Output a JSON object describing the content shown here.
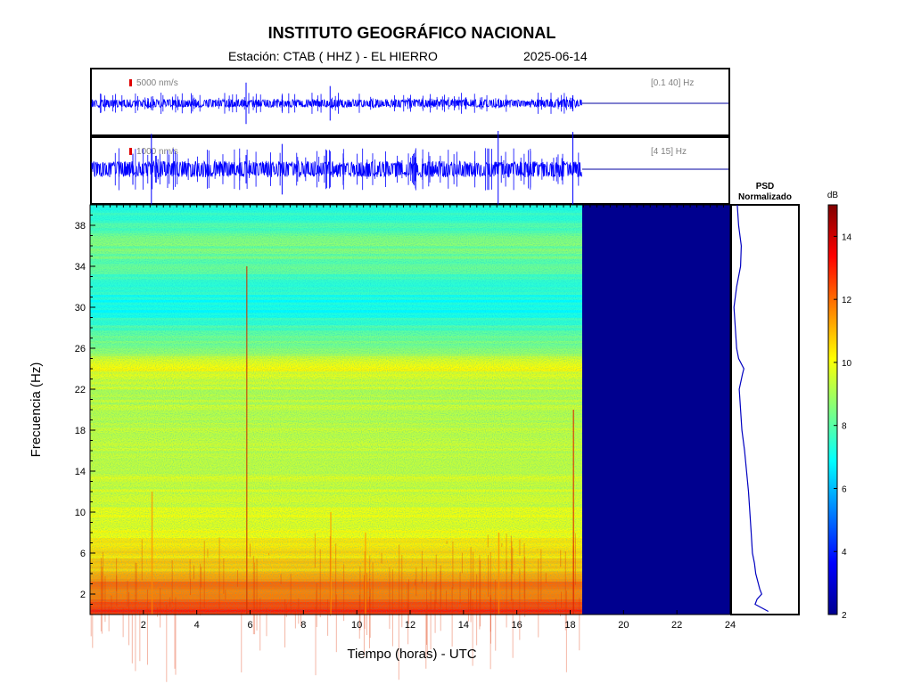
{
  "header": {
    "title": "INSTITUTO GEOGRÁFICO NACIONAL",
    "station": "Estación:  CTAB ( HHZ ) - EL HIERRO",
    "date": "2025-06-14"
  },
  "traces": [
    {
      "scale_label": "5000 nm/s",
      "band_label": "[0.1 40] Hz"
    },
    {
      "scale_label": "1000 nm/s",
      "band_label": "[4 15] Hz"
    }
  ],
  "psd": {
    "title_line1": "PSD",
    "title_line2": "Normalizado"
  },
  "colorbar": {
    "unit": "dB",
    "ticks": [
      2,
      4,
      6,
      8,
      10,
      12,
      14
    ],
    "range": [
      2,
      15
    ]
  },
  "colors": {
    "trace": "#0000ff",
    "no_data": "#00008f",
    "frame": "#000000"
  },
  "chart_data": {
    "type": "heatmap",
    "title": "INSTITUTO GEOGRÁFICO NACIONAL",
    "xlabel": "Tiempo (horas) - UTC",
    "ylabel": "Frecuencia  (Hz)",
    "xlim": [
      0,
      24
    ],
    "ylim": [
      0,
      40
    ],
    "xticks": [
      2,
      4,
      6,
      8,
      10,
      12,
      14,
      16,
      18,
      20,
      22,
      24
    ],
    "yticks": [
      2,
      6,
      10,
      14,
      18,
      22,
      26,
      30,
      34,
      38
    ],
    "data_end_hour": 18.45,
    "colorscale": "jet",
    "psd_curve": {
      "frequency_hz": [
        0.3,
        1,
        1.5,
        2,
        2.5,
        3,
        4,
        5,
        6,
        8,
        10,
        12,
        14,
        16,
        18,
        20,
        22,
        23.5,
        24,
        25,
        26,
        28,
        30,
        32,
        34,
        36,
        38,
        40
      ],
      "normalized": [
        0.55,
        0.35,
        0.38,
        0.45,
        0.42,
        0.4,
        0.36,
        0.34,
        0.31,
        0.29,
        0.27,
        0.25,
        0.22,
        0.19,
        0.15,
        0.13,
        0.11,
        0.16,
        0.18,
        0.1,
        0.07,
        0.05,
        0.03,
        0.07,
        0.13,
        0.14,
        0.1,
        0.08
      ]
    },
    "spectrum_profile": {
      "frequency_hz": [
        0,
        1,
        2,
        3,
        4,
        6,
        8,
        10,
        14,
        18,
        22,
        24,
        26,
        28,
        30,
        32,
        34,
        36,
        38,
        40
      ],
      "level_db": [
        13,
        12.5,
        11.5,
        12,
        11,
        10.5,
        10,
        9.8,
        9.5,
        9.3,
        9.4,
        10,
        8.8,
        7.8,
        7.0,
        7.5,
        8.2,
        8.5,
        7.8,
        7.2
      ]
    }
  }
}
